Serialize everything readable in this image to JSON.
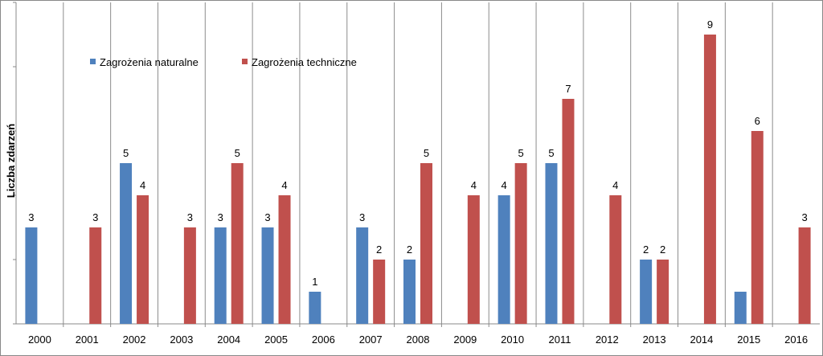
{
  "chart_data": {
    "type": "bar",
    "title": "",
    "xlabel": "",
    "ylabel": "Liczba zdarzeń",
    "ylim": [
      0,
      10
    ],
    "grid": "vertical separators between categories",
    "legend_position": "top-left",
    "categories": [
      "2000",
      "2001",
      "2002",
      "2003",
      "2004",
      "2005",
      "2006",
      "2007",
      "2008",
      "2009",
      "2010",
      "2011",
      "2012",
      "2013",
      "2014",
      "2015",
      "2016"
    ],
    "series": [
      {
        "name": "Zagrożenia naturalne",
        "color": "#4F81BD",
        "values": [
          3,
          0,
          5,
          0,
          3,
          3,
          1,
          3,
          2,
          0,
          4,
          5,
          0,
          2,
          0,
          1,
          0
        ],
        "labels": [
          "3",
          "",
          "5",
          "",
          "3",
          "3",
          "1",
          "3",
          "2",
          "",
          "4",
          "5",
          "",
          "2",
          "",
          "",
          ""
        ]
      },
      {
        "name": "Zagrożenia techniczne",
        "color": "#C0504D",
        "values": [
          0,
          3,
          4,
          3,
          5,
          4,
          0,
          2,
          5,
          4,
          5,
          7,
          4,
          2,
          9,
          6,
          3
        ],
        "labels": [
          "",
          "3",
          "4",
          "3",
          "5",
          "4",
          "",
          "2",
          "5",
          "4",
          "5",
          "7",
          "4",
          "2",
          "9",
          "6",
          "3"
        ]
      }
    ]
  }
}
